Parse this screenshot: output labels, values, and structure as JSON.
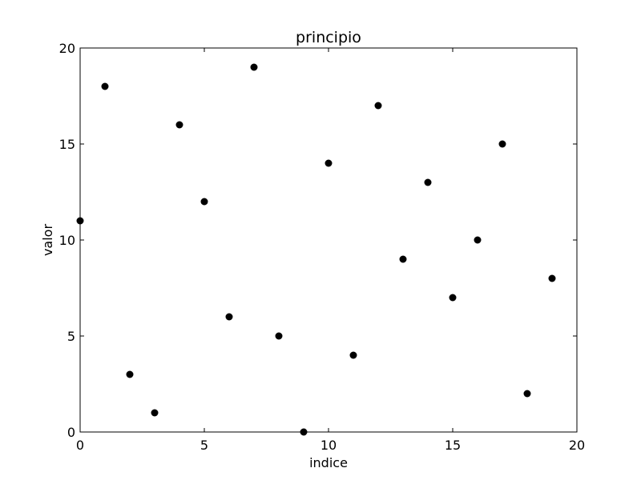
{
  "chart_data": {
    "type": "scatter",
    "title": "principio",
    "xlabel": "indice",
    "ylabel": "valor",
    "xlim": [
      0,
      20
    ],
    "ylim": [
      0,
      20
    ],
    "xticks": [
      0,
      5,
      10,
      15,
      20
    ],
    "yticks": [
      0,
      5,
      10,
      15,
      20
    ],
    "grid": false,
    "marker_color": "#000000",
    "series": [
      {
        "x": [
          0,
          1,
          2,
          3,
          4,
          5,
          6,
          7,
          8,
          9,
          10,
          11,
          12,
          13,
          14,
          15,
          16,
          17,
          18,
          19
        ],
        "y": [
          11,
          18,
          3,
          1,
          16,
          12,
          6,
          19,
          5,
          0,
          14,
          4,
          17,
          9,
          13,
          7,
          10,
          15,
          2,
          8
        ]
      }
    ]
  }
}
